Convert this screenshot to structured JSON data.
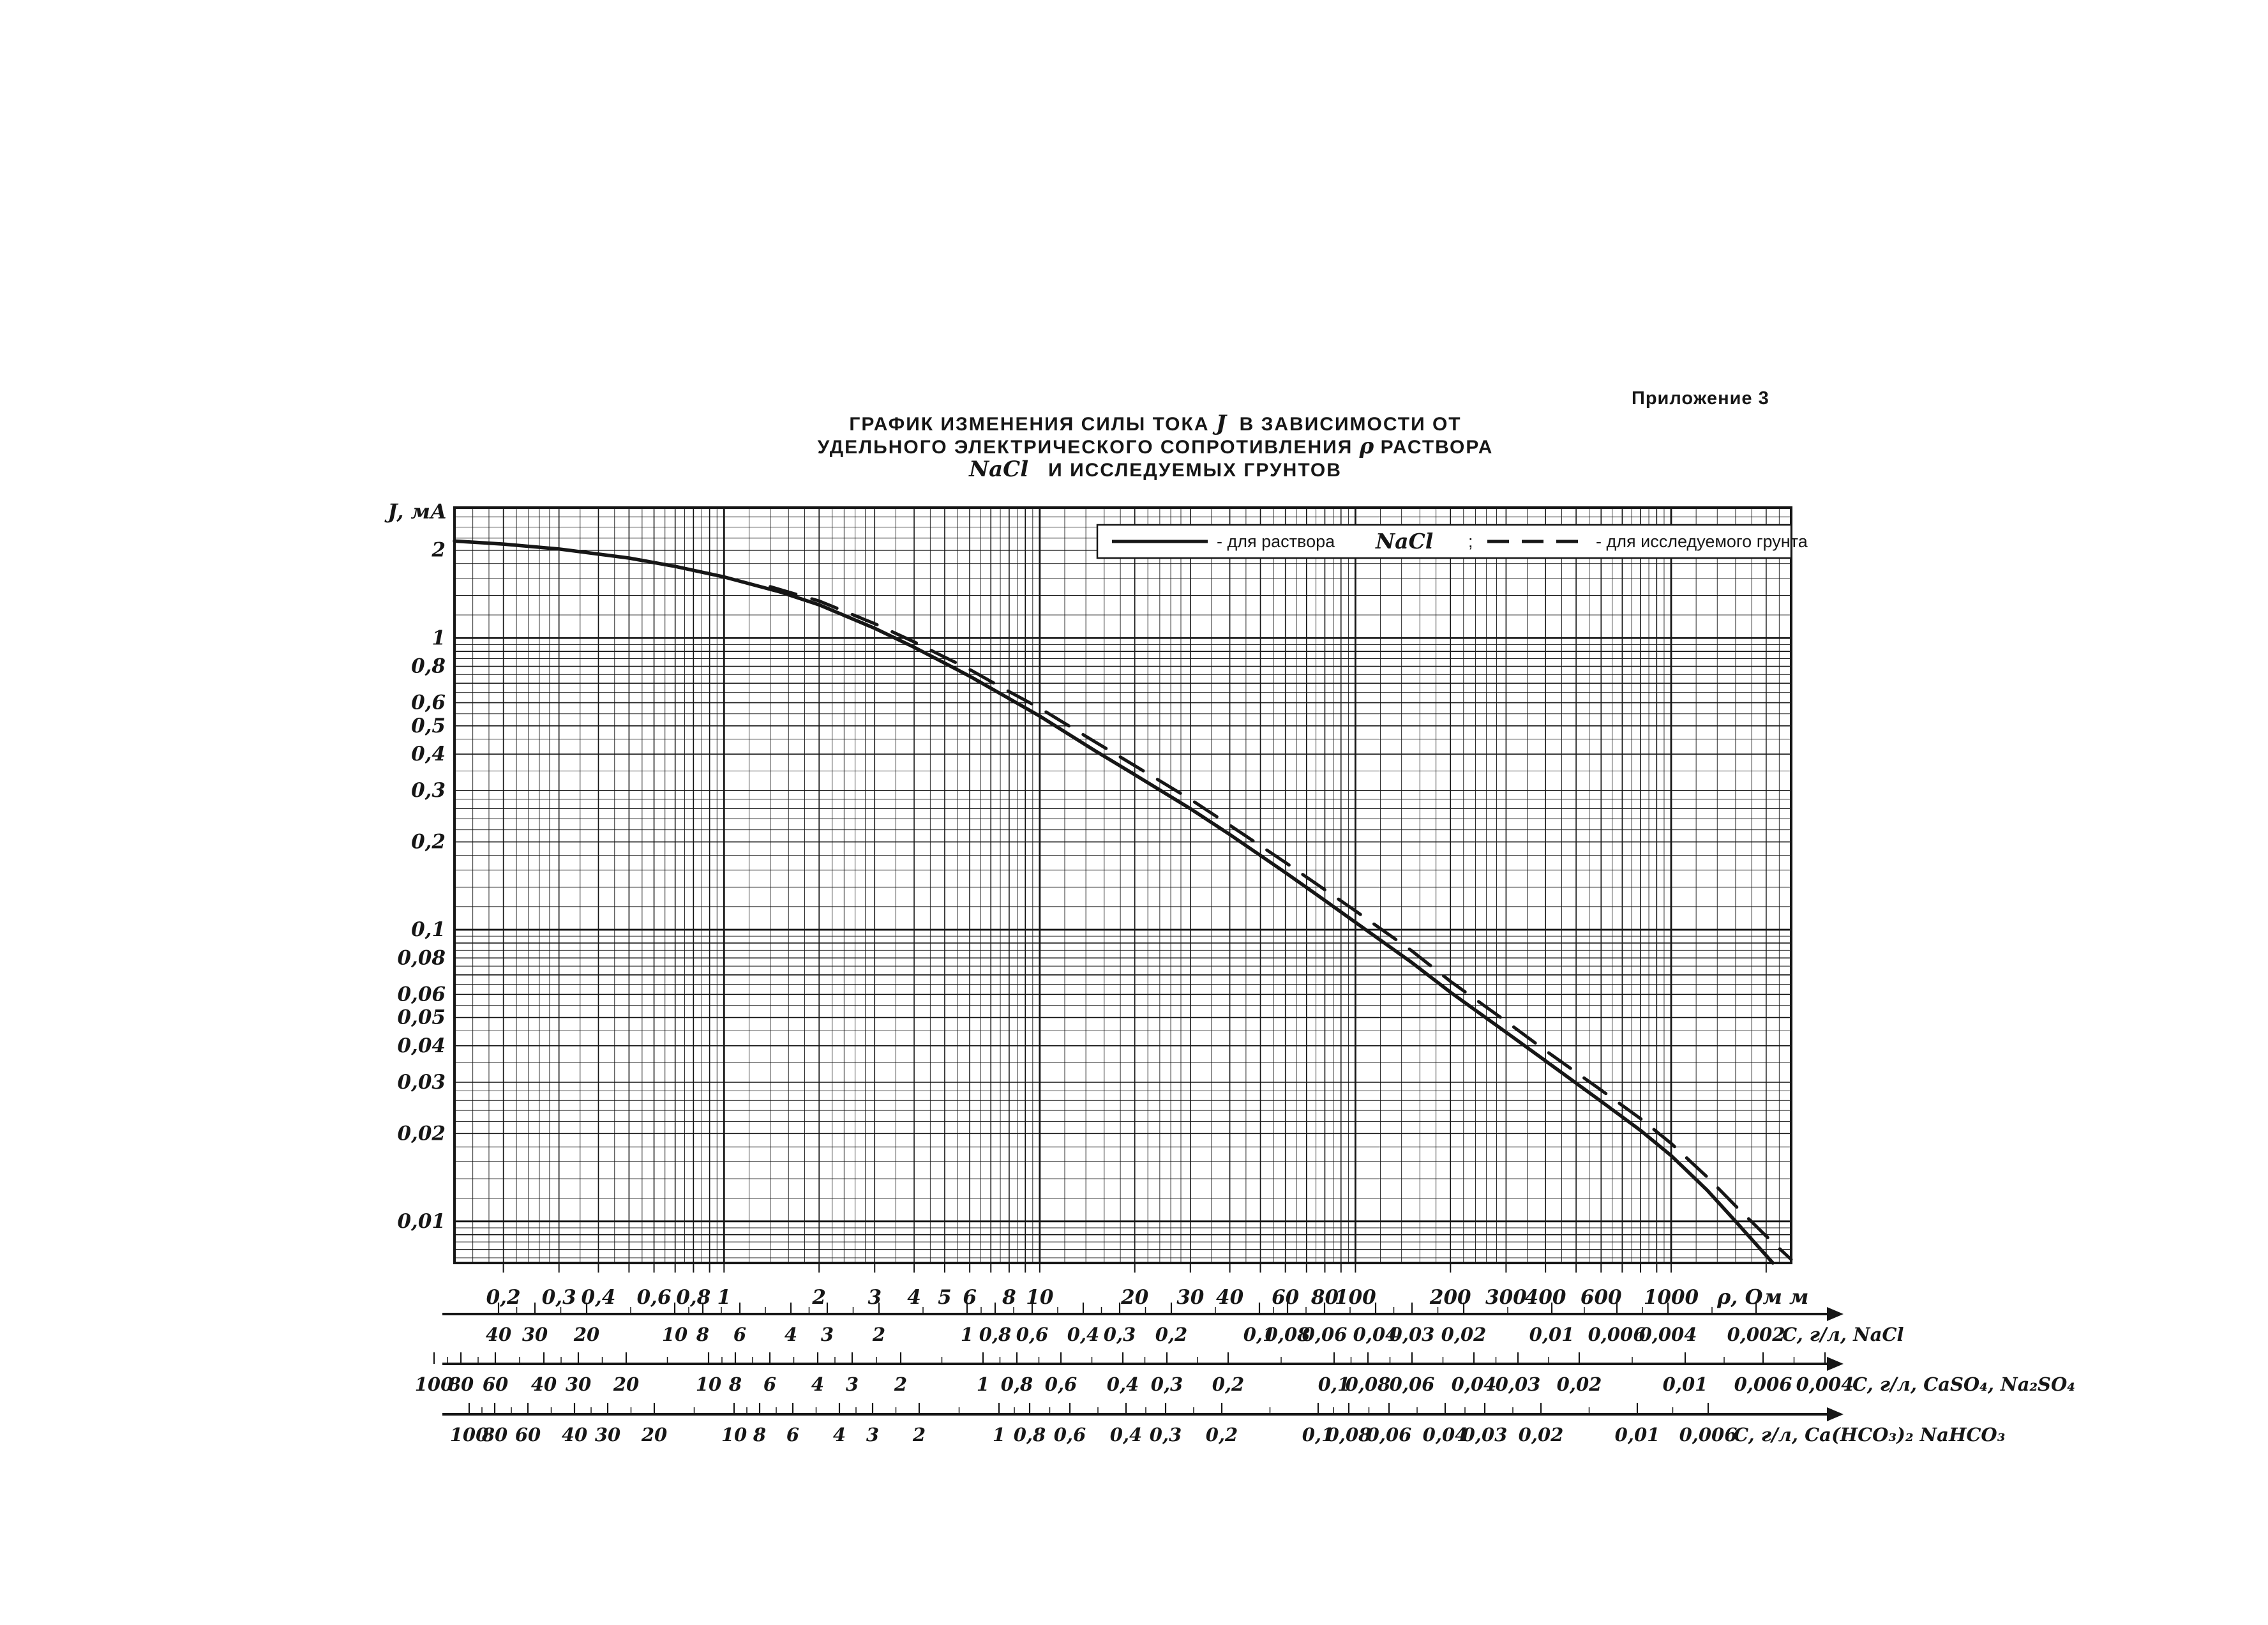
{
  "page": {
    "background": "#ffffff",
    "ink": "#161616"
  },
  "header": {
    "appendix": "Приложение 3"
  },
  "title": {
    "line1_pre": "ГРАФИК ИЗМЕНЕНИЯ СИЛЫ ТОКА",
    "line1_var": "J",
    "line1_post": "В ЗАВИСИМОСТИ ОТ",
    "line2_pre": "УДЕЛЬНОГО ЭЛЕКТРИЧЕСКОГО СОПРОТИВЛЕНИЯ",
    "line2_var": "ρ",
    "line2_post": "РАСТВОРА",
    "line3_var": "NaCl",
    "line3_post": "И ИССЛЕДУЕМЫХ ГРУНТОВ"
  },
  "legend": {
    "solid_label": "- для раствора",
    "solid_chem": "NaCl",
    "separator": ";",
    "dashed_label": "- для исследуемого грунта"
  },
  "chart_data": {
    "type": "line",
    "x_axis": {
      "label": "ρ, Ом м",
      "scale": "log",
      "range": [
        0.14,
        2400
      ],
      "ticks": [
        {
          "v": 0.2,
          "t": "0,2"
        },
        {
          "v": 0.3,
          "t": "0,3"
        },
        {
          "v": 0.4,
          "t": "0,4"
        },
        {
          "v": 0.6,
          "t": "0,6"
        },
        {
          "v": 0.8,
          "t": "0,8"
        },
        {
          "v": 1,
          "t": "1"
        },
        {
          "v": 2,
          "t": "2"
        },
        {
          "v": 3,
          "t": "3"
        },
        {
          "v": 4,
          "t": "4"
        },
        {
          "v": 5,
          "t": "5"
        },
        {
          "v": 6,
          "t": "6"
        },
        {
          "v": 8,
          "t": "8"
        },
        {
          "v": 10,
          "t": "10"
        },
        {
          "v": 20,
          "t": "20"
        },
        {
          "v": 30,
          "t": "30"
        },
        {
          "v": 40,
          "t": "40"
        },
        {
          "v": 60,
          "t": "60"
        },
        {
          "v": 80,
          "t": "80"
        },
        {
          "v": 100,
          "t": "100"
        },
        {
          "v": 200,
          "t": "200"
        },
        {
          "v": 300,
          "t": "300"
        },
        {
          "v": 400,
          "t": "400"
        },
        {
          "v": 600,
          "t": "600"
        },
        {
          "v": 1000,
          "t": "1000"
        }
      ]
    },
    "y_axis": {
      "label": "J, мА",
      "scale": "log",
      "range": [
        0.0072,
        2.8
      ],
      "ticks": [
        {
          "v": 2,
          "t": "2"
        },
        {
          "v": 1,
          "t": "1"
        },
        {
          "v": 0.8,
          "t": "0,8"
        },
        {
          "v": 0.6,
          "t": "0,6"
        },
        {
          "v": 0.5,
          "t": "0,5"
        },
        {
          "v": 0.4,
          "t": "0,4"
        },
        {
          "v": 0.3,
          "t": "0,3"
        },
        {
          "v": 0.2,
          "t": "0,2"
        },
        {
          "v": 0.1,
          "t": "0,1"
        },
        {
          "v": 0.08,
          "t": "0,08"
        },
        {
          "v": 0.06,
          "t": "0,06"
        },
        {
          "v": 0.05,
          "t": "0,05"
        },
        {
          "v": 0.04,
          "t": "0,04"
        },
        {
          "v": 0.03,
          "t": "0,03"
        },
        {
          "v": 0.02,
          "t": "0,02"
        },
        {
          "v": 0.01,
          "t": "0,01"
        }
      ]
    },
    "grid": "dense log-log graph paper",
    "legend_position": "top-right inside plot",
    "series": [
      {
        "name": "для раствора NaCl",
        "style": "solid",
        "points": [
          [
            0.14,
            2.15
          ],
          [
            0.2,
            2.1
          ],
          [
            0.3,
            2.02
          ],
          [
            0.5,
            1.88
          ],
          [
            0.7,
            1.76
          ],
          [
            1,
            1.62
          ],
          [
            1.5,
            1.44
          ],
          [
            2,
            1.3
          ],
          [
            3,
            1.08
          ],
          [
            4,
            0.93
          ],
          [
            5,
            0.82
          ],
          [
            6,
            0.74
          ],
          [
            8,
            0.62
          ],
          [
            10,
            0.54
          ],
          [
            15,
            0.41
          ],
          [
            20,
            0.34
          ],
          [
            30,
            0.26
          ],
          [
            40,
            0.212
          ],
          [
            60,
            0.157
          ],
          [
            80,
            0.126
          ],
          [
            100,
            0.106
          ],
          [
            150,
            0.0775
          ],
          [
            200,
            0.061
          ],
          [
            300,
            0.0445
          ],
          [
            400,
            0.0355
          ],
          [
            600,
            0.0258
          ],
          [
            800,
            0.0205
          ],
          [
            1000,
            0.0168
          ],
          [
            1300,
            0.0128
          ],
          [
            1600,
            0.01
          ],
          [
            1830,
            0.0085
          ],
          [
            2100,
            0.0072
          ]
        ]
      },
      {
        "name": "для исследуемого грунта",
        "style": "dashed",
        "points": [
          [
            1.4,
            1.5
          ],
          [
            2,
            1.34
          ],
          [
            3,
            1.12
          ],
          [
            4,
            0.97
          ],
          [
            5,
            0.86
          ],
          [
            6,
            0.78
          ],
          [
            8,
            0.655
          ],
          [
            10,
            0.575
          ],
          [
            15,
            0.44
          ],
          [
            20,
            0.365
          ],
          [
            30,
            0.28
          ],
          [
            40,
            0.228
          ],
          [
            60,
            0.17
          ],
          [
            80,
            0.137
          ],
          [
            100,
            0.116
          ],
          [
            150,
            0.085
          ],
          [
            200,
            0.0665
          ],
          [
            300,
            0.0485
          ],
          [
            400,
            0.0385
          ],
          [
            600,
            0.0282
          ],
          [
            800,
            0.0225
          ],
          [
            1000,
            0.0185
          ],
          [
            1300,
            0.0142
          ],
          [
            1600,
            0.0113
          ],
          [
            2000,
            0.0089
          ],
          [
            2400,
            0.0074
          ]
        ]
      }
    ]
  },
  "secondary_scales": [
    {
      "unit_label": "C, г/л, NaCl",
      "unit_x": 2792,
      "items": [
        {
          "t": "40",
          "x": 781
        },
        {
          "t": "30",
          "x": 838
        },
        {
          "t": "20",
          "x": 919
        },
        {
          "t": "10",
          "x": 1057
        },
        {
          "t": "8",
          "x": 1101
        },
        {
          "t": "6",
          "x": 1159
        },
        {
          "t": "4",
          "x": 1239
        },
        {
          "t": "3",
          "x": 1296
        },
        {
          "t": "2",
          "x": 1377
        },
        {
          "t": "1",
          "x": 1515
        },
        {
          "t": "0,8",
          "x": 1559
        },
        {
          "t": "0,6",
          "x": 1617
        },
        {
          "t": "0,4",
          "x": 1697
        },
        {
          "t": "0,3",
          "x": 1754
        },
        {
          "t": "0,2",
          "x": 1835
        },
        {
          "t": "0,1",
          "x": 1973
        },
        {
          "t": "0,08",
          "x": 2017
        },
        {
          "t": "0,06",
          "x": 2075
        },
        {
          "t": "0,04",
          "x": 2155
        },
        {
          "t": "0,03",
          "x": 2212
        },
        {
          "t": "0,02",
          "x": 2293
        },
        {
          "t": "0,01",
          "x": 2431
        },
        {
          "t": "0,006",
          "x": 2533
        },
        {
          "t": "0,004",
          "x": 2613
        },
        {
          "t": "0,002",
          "x": 2751
        }
      ]
    },
    {
      "unit_label": "C, г/л, CaSO₄, Na₂SO₄",
      "unit_x": 2902,
      "items": [
        {
          "t": "100",
          "x": 680
        },
        {
          "t": "80",
          "x": 722
        },
        {
          "t": "60",
          "x": 776
        },
        {
          "t": "40",
          "x": 852
        },
        {
          "t": "30",
          "x": 906
        },
        {
          "t": "20",
          "x": 981
        },
        {
          "t": "10",
          "x": 1110
        },
        {
          "t": "8",
          "x": 1152
        },
        {
          "t": "6",
          "x": 1206
        },
        {
          "t": "4",
          "x": 1281
        },
        {
          "t": "3",
          "x": 1335
        },
        {
          "t": "2",
          "x": 1411
        },
        {
          "t": "1",
          "x": 1540
        },
        {
          "t": "0,8",
          "x": 1593
        },
        {
          "t": "0,6",
          "x": 1662
        },
        {
          "t": "0,4",
          "x": 1759
        },
        {
          "t": "0,3",
          "x": 1828
        },
        {
          "t": "0,2",
          "x": 1924
        },
        {
          "t": "0,1",
          "x": 2090
        },
        {
          "t": "0,08",
          "x": 2143
        },
        {
          "t": "0,06",
          "x": 2212
        },
        {
          "t": "0,04",
          "x": 2309
        },
        {
          "t": "0,03",
          "x": 2378
        },
        {
          "t": "0,02",
          "x": 2474
        },
        {
          "t": "0,01",
          "x": 2640
        },
        {
          "t": "0,006",
          "x": 2762
        },
        {
          "t": "0,004",
          "x": 2859
        }
      ]
    },
    {
      "unit_label": "C, г/л, Ca(HCO₃)₂ NaHCO₃",
      "unit_x": 2716,
      "items": [
        {
          "t": "100",
          "x": 735
        },
        {
          "t": "80",
          "x": 775
        },
        {
          "t": "60",
          "x": 827
        },
        {
          "t": "40",
          "x": 900
        },
        {
          "t": "30",
          "x": 952
        },
        {
          "t": "20",
          "x": 1025
        },
        {
          "t": "10",
          "x": 1150
        },
        {
          "t": "8",
          "x": 1190
        },
        {
          "t": "6",
          "x": 1242
        },
        {
          "t": "4",
          "x": 1315
        },
        {
          "t": "3",
          "x": 1367
        },
        {
          "t": "2",
          "x": 1440
        },
        {
          "t": "1",
          "x": 1565
        },
        {
          "t": "0,8",
          "x": 1613
        },
        {
          "t": "0,6",
          "x": 1676
        },
        {
          "t": "0,4",
          "x": 1764
        },
        {
          "t": "0,3",
          "x": 1826
        },
        {
          "t": "0,2",
          "x": 1914
        },
        {
          "t": "0,1",
          "x": 2065
        },
        {
          "t": "0,08",
          "x": 2113
        },
        {
          "t": "0,06",
          "x": 2176
        },
        {
          "t": "0,04",
          "x": 2264
        },
        {
          "t": "0,03",
          "x": 2326
        },
        {
          "t": "0,02",
          "x": 2414
        },
        {
          "t": "0,01",
          "x": 2565
        },
        {
          "t": "0,006",
          "x": 2676
        }
      ]
    }
  ]
}
